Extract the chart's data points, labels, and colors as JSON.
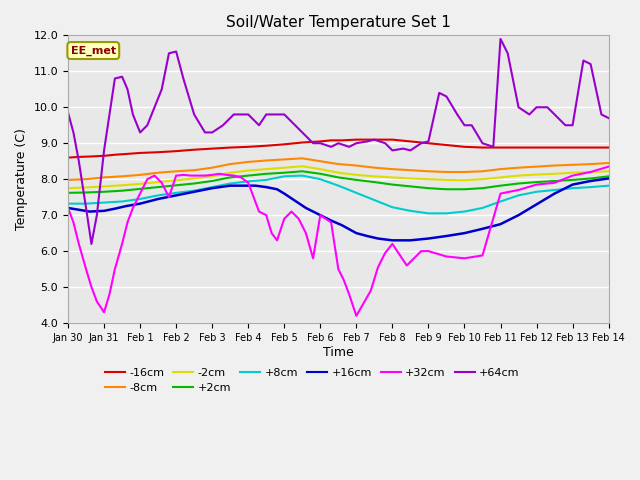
{
  "title": "Soil/Water Temperature Set 1",
  "xlabel": "Time",
  "ylabel": "Temperature (C)",
  "ylim": [
    4.0,
    12.0
  ],
  "xlim": [
    0,
    15
  ],
  "yticks": [
    4.0,
    5.0,
    6.0,
    7.0,
    8.0,
    9.0,
    10.0,
    11.0,
    12.0
  ],
  "xtick_labels": [
    "Jan 30",
    "Jan 31",
    "Feb 1",
    "Feb 2",
    "Feb 3",
    "Feb 4",
    "Feb 5",
    "Feb 6",
    "Feb 7",
    "Feb 8",
    "Feb 9",
    "Feb 10",
    "Feb 11",
    "Feb 12",
    "Feb 13",
    "Feb 14"
  ],
  "xtick_positions": [
    0,
    1,
    2,
    3,
    4,
    5,
    6,
    7,
    8,
    9,
    10,
    11,
    12,
    13,
    14,
    15
  ],
  "annotation_text": "EE_met",
  "annotation_color": "#8B0000",
  "annotation_bg": "#FFFFC0",
  "annotation_border": "#999900",
  "series": [
    {
      "label": "-16cm",
      "color": "#dd0000",
      "lw": 1.5,
      "x": [
        0,
        0.3,
        0.6,
        1,
        1.3,
        1.6,
        2,
        2.5,
        3,
        3.5,
        4,
        4.5,
        5,
        5.5,
        6,
        6.5,
        7,
        7.3,
        7.6,
        8,
        8.5,
        9,
        9.5,
        10,
        10.5,
        11,
        11.5,
        12,
        12.5,
        13,
        13.5,
        14,
        14.5,
        15
      ],
      "y": [
        8.6,
        8.62,
        8.63,
        8.65,
        8.68,
        8.7,
        8.73,
        8.75,
        8.78,
        8.82,
        8.85,
        8.88,
        8.9,
        8.93,
        8.97,
        9.02,
        9.05,
        9.08,
        9.08,
        9.1,
        9.1,
        9.1,
        9.05,
        9.0,
        8.95,
        8.9,
        8.88,
        8.88,
        8.88,
        8.88,
        8.88,
        8.88,
        8.88,
        8.88
      ]
    },
    {
      "label": "-8cm",
      "color": "#ff8800",
      "lw": 1.5,
      "x": [
        0,
        0.5,
        1,
        1.5,
        2,
        2.5,
        3,
        3.5,
        4,
        4.5,
        5,
        5.5,
        6,
        6.5,
        7,
        7.5,
        8,
        8.5,
        9,
        9.5,
        10,
        10.5,
        11,
        11.5,
        12,
        12.5,
        13,
        13.5,
        14,
        14.5,
        15
      ],
      "y": [
        7.98,
        8.0,
        8.05,
        8.08,
        8.12,
        8.18,
        8.22,
        8.25,
        8.32,
        8.42,
        8.48,
        8.52,
        8.55,
        8.58,
        8.5,
        8.42,
        8.38,
        8.32,
        8.28,
        8.25,
        8.22,
        8.2,
        8.2,
        8.22,
        8.28,
        8.32,
        8.35,
        8.38,
        8.4,
        8.42,
        8.45
      ]
    },
    {
      "label": "-2cm",
      "color": "#dddd00",
      "lw": 1.5,
      "x": [
        0,
        0.5,
        1,
        1.5,
        2,
        2.5,
        3,
        3.5,
        4,
        4.5,
        5,
        5.5,
        6,
        6.5,
        7,
        7.5,
        8,
        8.5,
        9,
        9.5,
        10,
        10.5,
        11,
        11.5,
        12,
        12.5,
        13,
        13.5,
        14,
        14.5,
        15
      ],
      "y": [
        7.75,
        7.77,
        7.8,
        7.83,
        7.87,
        7.92,
        7.97,
        8.02,
        8.08,
        8.18,
        8.24,
        8.28,
        8.32,
        8.36,
        8.28,
        8.18,
        8.12,
        8.08,
        8.05,
        8.02,
        8.0,
        7.98,
        7.97,
        8.0,
        8.05,
        8.1,
        8.13,
        8.15,
        8.18,
        8.2,
        8.22
      ]
    },
    {
      "label": "+2cm",
      "color": "#00bb00",
      "lw": 1.5,
      "x": [
        0,
        0.5,
        1,
        1.5,
        2,
        2.5,
        3,
        3.5,
        4,
        4.5,
        5,
        5.5,
        6,
        6.5,
        7,
        7.5,
        8,
        8.5,
        9,
        9.5,
        10,
        10.5,
        11,
        11.5,
        12,
        12.5,
        13,
        13.5,
        14,
        14.5,
        15
      ],
      "y": [
        7.62,
        7.63,
        7.65,
        7.68,
        7.73,
        7.78,
        7.83,
        7.88,
        7.95,
        8.05,
        8.1,
        8.15,
        8.18,
        8.22,
        8.15,
        8.05,
        7.98,
        7.92,
        7.85,
        7.8,
        7.75,
        7.72,
        7.72,
        7.75,
        7.82,
        7.88,
        7.92,
        7.95,
        7.98,
        8.02,
        8.08
      ]
    },
    {
      "label": "+8cm",
      "color": "#00cccc",
      "lw": 1.5,
      "x": [
        0,
        0.5,
        1,
        1.5,
        2,
        2.5,
        3,
        3.5,
        4,
        4.5,
        5,
        5.5,
        6,
        6.5,
        7,
        7.5,
        8,
        8.5,
        9,
        9.5,
        10,
        10.5,
        11,
        11.5,
        12,
        12.5,
        13,
        13.5,
        14,
        14.5,
        15
      ],
      "y": [
        7.32,
        7.32,
        7.35,
        7.38,
        7.45,
        7.55,
        7.62,
        7.68,
        7.78,
        7.88,
        7.94,
        7.98,
        8.08,
        8.1,
        8.0,
        7.82,
        7.62,
        7.42,
        7.22,
        7.12,
        7.05,
        7.05,
        7.1,
        7.2,
        7.38,
        7.55,
        7.65,
        7.7,
        7.75,
        7.78,
        7.82
      ]
    },
    {
      "label": "+16cm",
      "color": "#0000cc",
      "lw": 1.8,
      "x": [
        0,
        0.3,
        0.6,
        1,
        1.3,
        1.6,
        2,
        2.5,
        3,
        3.5,
        4,
        4.5,
        5,
        5.2,
        5.5,
        5.8,
        6,
        6.3,
        6.6,
        7,
        7.3,
        7.6,
        8,
        8.3,
        8.6,
        9,
        9.5,
        10,
        10.5,
        11,
        11.5,
        12,
        12.5,
        13,
        13.5,
        14,
        14.5,
        15
      ],
      "y": [
        7.2,
        7.15,
        7.1,
        7.12,
        7.18,
        7.25,
        7.32,
        7.45,
        7.55,
        7.65,
        7.75,
        7.82,
        7.82,
        7.82,
        7.78,
        7.72,
        7.6,
        7.4,
        7.2,
        7.0,
        6.85,
        6.72,
        6.5,
        6.42,
        6.35,
        6.3,
        6.3,
        6.35,
        6.42,
        6.5,
        6.62,
        6.75,
        7.0,
        7.3,
        7.6,
        7.85,
        7.95,
        8.02
      ]
    },
    {
      "label": "+32cm",
      "color": "#ff00ff",
      "lw": 1.5,
      "x": [
        0,
        0.15,
        0.3,
        0.5,
        0.65,
        0.8,
        1.0,
        1.15,
        1.3,
        1.5,
        1.65,
        1.8,
        2.0,
        2.2,
        2.4,
        2.6,
        2.8,
        3.0,
        3.2,
        3.4,
        3.6,
        3.8,
        4.0,
        4.2,
        4.4,
        4.6,
        4.8,
        5.0,
        5.15,
        5.3,
        5.5,
        5.65,
        5.8,
        6.0,
        6.2,
        6.4,
        6.6,
        6.8,
        7.0,
        7.15,
        7.3,
        7.5,
        7.65,
        7.8,
        8.0,
        8.2,
        8.4,
        8.6,
        8.8,
        9.0,
        9.2,
        9.4,
        9.6,
        9.8,
        10.0,
        10.5,
        11.0,
        11.5,
        12.0,
        12.5,
        13.0,
        13.5,
        14.0,
        14.5,
        15.0
      ],
      "y": [
        7.2,
        6.8,
        6.2,
        5.5,
        5.0,
        4.6,
        4.3,
        4.8,
        5.5,
        6.2,
        6.8,
        7.2,
        7.6,
        8.0,
        8.1,
        7.9,
        7.5,
        8.1,
        8.12,
        8.1,
        8.1,
        8.1,
        8.12,
        8.15,
        8.12,
        8.1,
        8.05,
        7.9,
        7.5,
        7.1,
        7.0,
        6.5,
        6.3,
        6.9,
        7.1,
        6.9,
        6.5,
        5.8,
        7.0,
        6.9,
        6.8,
        5.5,
        5.2,
        4.8,
        4.2,
        4.55,
        4.9,
        5.55,
        5.95,
        6.2,
        5.9,
        5.6,
        5.8,
        6.0,
        6.0,
        5.85,
        5.8,
        5.88,
        7.6,
        7.7,
        7.85,
        7.9,
        8.1,
        8.2,
        8.35
      ]
    },
    {
      "label": "+64cm",
      "color": "#9900cc",
      "lw": 1.5,
      "x": [
        0,
        0.15,
        0.3,
        0.5,
        0.65,
        0.8,
        1.0,
        1.15,
        1.3,
        1.5,
        1.65,
        1.8,
        2.0,
        2.2,
        2.4,
        2.6,
        2.8,
        3.0,
        3.2,
        3.5,
        3.8,
        4.0,
        4.3,
        4.6,
        4.8,
        5.0,
        5.3,
        5.5,
        5.8,
        6.0,
        6.3,
        6.5,
        6.8,
        7.0,
        7.3,
        7.5,
        7.8,
        8.0,
        8.3,
        8.5,
        8.8,
        9.0,
        9.3,
        9.5,
        9.8,
        10.0,
        10.3,
        10.5,
        10.8,
        11.0,
        11.2,
        11.5,
        11.8,
        12.0,
        12.2,
        12.5,
        12.8,
        13.0,
        13.3,
        13.5,
        13.8,
        14.0,
        14.3,
        14.5,
        14.8,
        15.0
      ],
      "y": [
        9.85,
        9.3,
        8.5,
        7.2,
        6.2,
        7.0,
        8.8,
        9.8,
        10.8,
        10.85,
        10.5,
        9.8,
        9.3,
        9.5,
        10.0,
        10.5,
        11.5,
        11.55,
        10.8,
        9.8,
        9.3,
        9.3,
        9.5,
        9.8,
        9.8,
        9.8,
        9.5,
        9.8,
        9.8,
        9.8,
        9.5,
        9.3,
        9.0,
        9.0,
        8.9,
        9.0,
        8.9,
        9.0,
        9.05,
        9.1,
        9.0,
        8.8,
        8.85,
        8.8,
        9.0,
        9.05,
        10.4,
        10.3,
        9.8,
        9.5,
        9.5,
        9.0,
        8.9,
        11.9,
        11.5,
        10.0,
        9.8,
        10.0,
        10.0,
        9.8,
        9.5,
        9.5,
        11.3,
        11.2,
        9.8,
        9.7
      ]
    }
  ],
  "bg_color": "#e8e8e8",
  "plot_bg": "#e8e8e8",
  "fig_bg": "#f0f0f0"
}
